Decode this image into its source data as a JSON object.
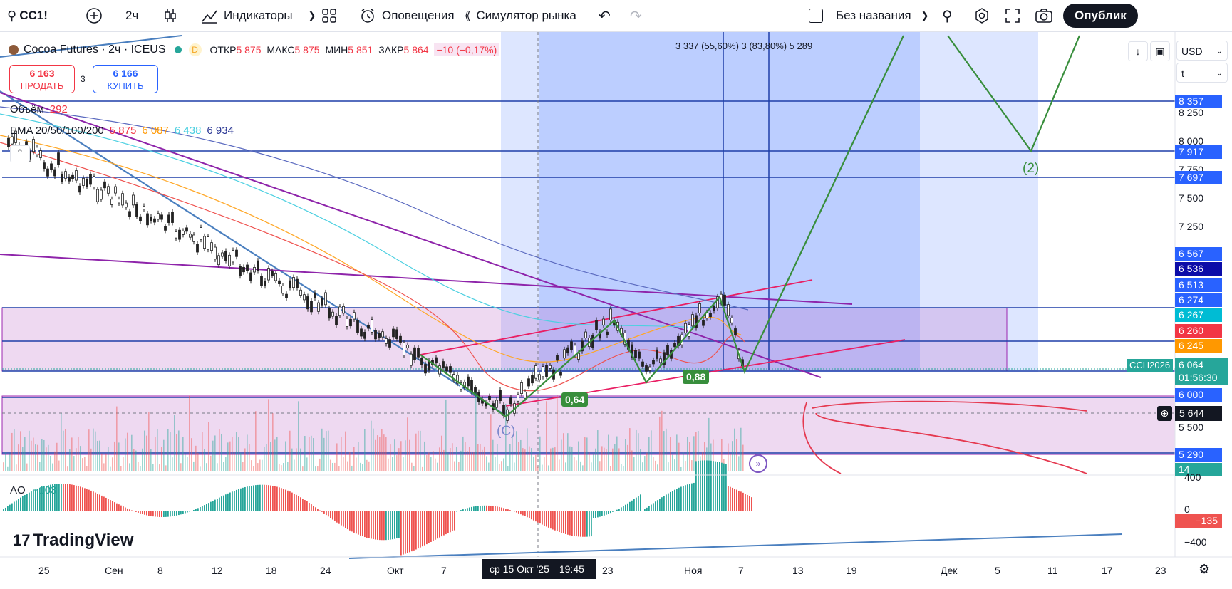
{
  "toolbar": {
    "symbol": "CC1!",
    "interval": "2ч",
    "indicators": "Индикаторы",
    "alerts": "Оповещения",
    "replay": "Симулятор рынка",
    "layout_name": "Без названия",
    "publish": "Опублик"
  },
  "legend": {
    "title": "Cocoa Futures · 2ч · ICEUS",
    "open_label": "ОТКР",
    "open": "5 875",
    "high_label": "МАКС",
    "high": "5 875",
    "low_label": "МИН",
    "low": "5 851",
    "close_label": "ЗАКР",
    "close": "5 864",
    "change": "−10 (−0,17%)",
    "sell_price": "6 163",
    "sell_label": "ПРОДАТЬ",
    "spread": "3",
    "buy_price": "6 166",
    "buy_label": "КУПИТЬ",
    "volume_label": "Объём",
    "volume_value": "292",
    "ema_label": "EMA 20/50/100/200",
    "ema20": "5 875",
    "ema50": "6 087",
    "ema100": "6 438",
    "ema200": "6 934"
  },
  "measure_text": "3 337 (55,60%) 3 (83,80%) 5 289",
  "currency": "USD",
  "unit": "t",
  "price_axis": {
    "plain": [
      "8 250",
      "8 000",
      "7 750",
      "7 500",
      "7 250",
      "5 500"
    ],
    "tags": [
      {
        "value": "8 357",
        "color": "#2962ff"
      },
      {
        "value": "7 917",
        "color": "#2962ff"
      },
      {
        "value": "7 697",
        "color": "#2962ff"
      },
      {
        "value": "6 567",
        "color": "#2962ff"
      },
      {
        "value": "6 536",
        "color": "#0c0ca8"
      },
      {
        "value": "6 513",
        "color": "#2962ff"
      },
      {
        "value": "6 274",
        "color": "#2962ff"
      },
      {
        "value": "6 267",
        "color": "#00bcd4"
      },
      {
        "value": "6 260",
        "color": "#f23645"
      },
      {
        "value": "6 245",
        "color": "#ff9800"
      },
      {
        "value": "6 000",
        "color": "#2962ff"
      },
      {
        "value": "5 290",
        "color": "#2962ff"
      },
      {
        "value": "14",
        "color": "#26a69a"
      }
    ],
    "current_price": "6 064",
    "countdown": "01:56:30",
    "contract": "CCH2026",
    "crosshair_price": "5 644"
  },
  "ao": {
    "label": "AO",
    "value": "−103",
    "axis": [
      "400",
      "0",
      "−400"
    ],
    "current": "−135"
  },
  "annotations": {
    "wave_c": "(C)",
    "wave_2": "(2)",
    "fib_1": "0,64",
    "fib_2": "0,88"
  },
  "time_axis": {
    "labels": [
      "25",
      "Сен",
      "8",
      "12",
      "18",
      "24",
      "Окт",
      "7",
      "23",
      "Ноя",
      "7",
      "13",
      "19",
      "Дек",
      "5",
      "11",
      "17",
      "23"
    ],
    "crosshair": "ср 15 Окт '25",
    "crosshair_time": "19:45"
  },
  "watermark": "TradingView"
}
